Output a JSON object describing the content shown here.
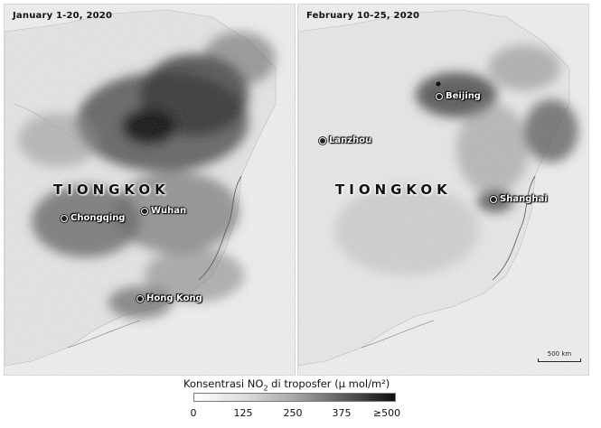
{
  "panels": [
    {
      "date": "January 1-20, 2020",
      "country_label": "TIONGKOK",
      "cities": [
        {
          "name": "Chongqing"
        },
        {
          "name": "Wuhan"
        },
        {
          "name": "Hong Kong"
        }
      ]
    },
    {
      "date": "February 10-25, 2020",
      "country_label": "TIONGKOK",
      "cities": [
        {
          "name": "Beijing"
        },
        {
          "name": "Lanzhou"
        },
        {
          "name": "Shanghai"
        }
      ],
      "scale_bar": "500 km"
    }
  ],
  "legend": {
    "title_pre": "Konsentrasi NO",
    "title_sub": "2",
    "title_post": " di troposfer (μ mol/m²)",
    "ticks": [
      "0",
      "125",
      "250",
      "375",
      "≥500"
    ],
    "gradient_colors": [
      "#ffffff",
      "#0d0d0d"
    ]
  }
}
